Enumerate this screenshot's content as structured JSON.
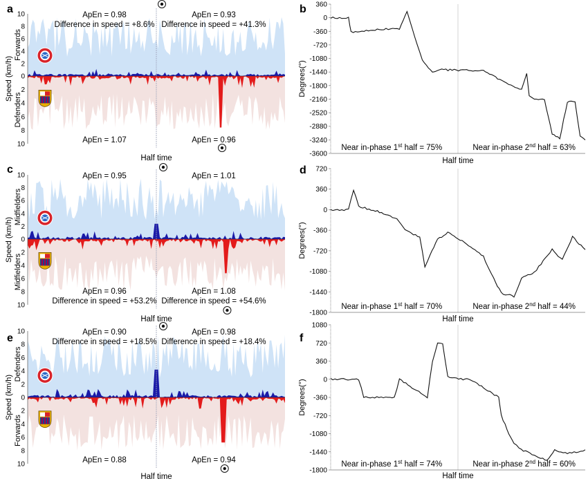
{
  "figure": {
    "speed_panels": [
      {
        "panel": "a",
        "top_team_label": "Forwards",
        "bottom_team_label": "Defenders",
        "ylabel": "Speed (km/h)",
        "xlabel": "Half time",
        "yticks_top": [
          10,
          8,
          6,
          4,
          2,
          0
        ],
        "yticks_bottom": [
          2,
          4,
          6,
          8,
          10
        ],
        "ann_top_left": [
          "ApEn = 0.98",
          "Difference in speed = +8.6%"
        ],
        "ann_top_right": [
          "ApEn = 0.93",
          "Difference in speed = +41.3%"
        ],
        "ann_bottom_left": [
          "ApEn = 1.07"
        ],
        "ann_bottom_right": [
          "ApEn = 0.96"
        ],
        "seed": 3,
        "spike_top": 0.0,
        "spike_bottom": 7.6,
        "spike_pos": 0.75
      },
      {
        "panel": "c",
        "top_team_label": "Midfielders",
        "bottom_team_label": "Midfielders",
        "ylabel": "Speed (km/h)",
        "xlabel": "Half time",
        "yticks_top": [
          10,
          8,
          6,
          4,
          2,
          0
        ],
        "yticks_bottom": [
          2,
          4,
          6,
          8,
          10
        ],
        "ann_top_left": [
          "ApEn = 0.95"
        ],
        "ann_top_right": [
          "ApEn = 1.01"
        ],
        "ann_bottom_left": [
          "ApEn = 0.96",
          "Difference in speed = +53.2%"
        ],
        "ann_bottom_right": [
          "ApEn = 1.08",
          "Difference in speed = +54.6%"
        ],
        "seed": 7,
        "spike_top": 2.4,
        "spike_bottom": 5.2,
        "spike_pos": 0.77
      },
      {
        "panel": "e",
        "top_team_label": "Defenders",
        "bottom_team_label": "Forwards",
        "ylabel": "Speed (km/h)",
        "xlabel": "Half time",
        "yticks_top": [
          10,
          8,
          6,
          4,
          2,
          0
        ],
        "yticks_bottom": [
          2,
          4,
          6,
          8,
          10
        ],
        "ann_top_left": [
          "ApEn = 0.90",
          "Difference in speed = +18.5%"
        ],
        "ann_top_right": [
          "ApEn = 0.98",
          "Difference in speed = +18.4%"
        ],
        "ann_bottom_left": [
          "ApEn = 0.88"
        ],
        "ann_bottom_right": [
          "ApEn = 0.94"
        ],
        "seed": 11,
        "spike_top": 4.2,
        "spike_bottom": 6.8,
        "spike_pos": 0.76
      }
    ],
    "phase_panels": [
      {
        "panel": "b",
        "ylabel": "Degrees(°)",
        "xlabel": "Half time",
        "yticks": [
          360,
          0,
          -360,
          -720,
          -1080,
          -1440,
          -1800,
          -2160,
          -2520,
          -2880,
          -3240,
          -3600
        ],
        "ylim": [
          -3600,
          360
        ],
        "ann_left": "Near in-phase 1st half =  75%",
        "ann_right": "Near in-phase 2nd half =  63%",
        "ann_left_parts": [
          "Near in-phase 1",
          "st",
          " half =  75%"
        ],
        "ann_right_parts": [
          "Near in-phase 2",
          "nd",
          " half =  63%"
        ],
        "x": [
          0,
          0.07,
          0.08,
          0.2,
          0.27,
          0.3,
          0.32,
          0.34,
          0.36,
          0.4,
          0.42,
          0.6,
          0.68,
          0.7,
          0.75,
          0.77,
          0.78,
          0.8,
          0.84,
          0.87,
          0.9,
          0.93,
          0.96,
          0.98,
          1.0
        ],
        "y": [
          0,
          0,
          -380,
          -300,
          -300,
          170,
          -260,
          -720,
          -1120,
          -1440,
          -1380,
          -1400,
          -1700,
          -1780,
          -1900,
          -1460,
          -2070,
          -2150,
          -2160,
          -3100,
          -3200,
          -2230,
          -2230,
          -3150,
          -3240
        ]
      },
      {
        "panel": "d",
        "ylabel": "Degrees(°)",
        "xlabel": "Half time",
        "yticks": [
          720,
          360,
          0,
          -360,
          -720,
          -1080,
          -1440,
          -1800
        ],
        "ylim": [
          -1800,
          720
        ],
        "ann_left": "Near in-phase 1st half =  70%",
        "ann_right": "Near in-phase 2nd half =  44%",
        "ann_left_parts": [
          "Near in-phase 1",
          "st",
          " half =  70%"
        ],
        "ann_right_parts": [
          "Near in-phase 2",
          "nd",
          " half =  44%"
        ],
        "x": [
          0,
          0.07,
          0.09,
          0.11,
          0.2,
          0.26,
          0.3,
          0.35,
          0.37,
          0.39,
          0.42,
          0.46,
          0.5,
          0.55,
          0.6,
          0.64,
          0.67,
          0.72,
          0.75,
          0.8,
          0.87,
          0.91,
          0.95,
          1.0
        ],
        "y": [
          0,
          0,
          350,
          60,
          -50,
          -170,
          -380,
          -480,
          -1000,
          -800,
          -520,
          -400,
          -500,
          -650,
          -820,
          -1200,
          -1460,
          -1520,
          -1200,
          -1100,
          -700,
          -880,
          -480,
          -700
        ]
      },
      {
        "panel": "f",
        "ylabel": "Degrees(°)",
        "xlabel": "Half time",
        "yticks": [
          1080,
          720,
          360,
          0,
          -360,
          -720,
          -1080,
          -1440,
          -1800
        ],
        "ylim": [
          -1800,
          1080
        ],
        "ann_left": "Near in-phase 1st half =  74%",
        "ann_right": "Near in-phase 2nd half =  60%",
        "ann_left_parts": [
          "Near in-phase 1",
          "st",
          " half =  74%"
        ],
        "ann_right_parts": [
          "Near in-phase 2",
          "nd",
          " half =  60%"
        ],
        "x": [
          0,
          0.11,
          0.13,
          0.25,
          0.27,
          0.38,
          0.4,
          0.42,
          0.44,
          0.46,
          0.52,
          0.55,
          0.66,
          0.67,
          0.7,
          0.72,
          0.74,
          0.8,
          0.85,
          0.88,
          0.93,
          1.0
        ],
        "y": [
          0,
          0,
          -360,
          -360,
          0,
          -360,
          360,
          720,
          720,
          40,
          0,
          0,
          -360,
          -720,
          -1080,
          -1260,
          -1380,
          -1500,
          -1620,
          -1400,
          -1480,
          -1400
        ]
      }
    ]
  },
  "colors": {
    "top_bg": "#cfe3f7",
    "bottom_bg": "#f3e2e0",
    "top_line": "#1a1aa8",
    "bottom_line": "#e31b1b",
    "halftime": "#9aa0b8",
    "phase_line": "#111111",
    "bayern_red": "#d8232a",
    "barca_blue": "#1c3e8a",
    "barca_red": "#a50044",
    "barca_gold": "#e8b000"
  }
}
